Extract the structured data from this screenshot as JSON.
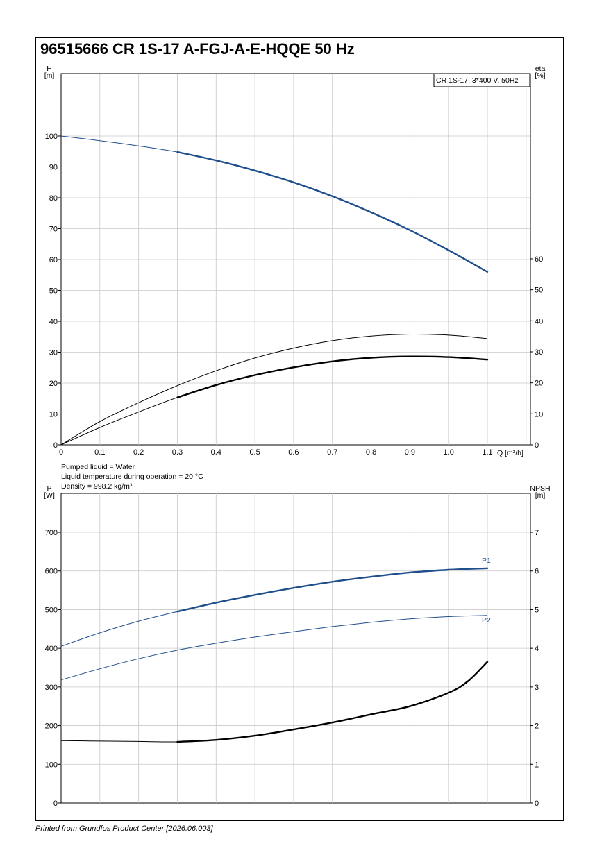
{
  "title": "96515666 CR 1S-17 A-FGJ-A-E-HQQE 50 Hz",
  "footer": "Printed from Grundfos Product Center [2026.06.003]",
  "colors": {
    "blue": "#1f4e8c",
    "black": "#000000",
    "grid": "#c8c8c8"
  },
  "liquid_info": [
    "Pumped liquid = Water",
    "Liquid temperature during operation = 20 °C",
    "Density = 998.2 kg/m³"
  ],
  "chart_data": [
    {
      "type": "line",
      "legend_box": "CR 1S-17, 3*400 V, 50Hz",
      "y_left_label": [
        "H",
        "[m]"
      ],
      "y_right_label": [
        "eta",
        "[%]"
      ],
      "x_label": "Q [m³/h]",
      "xlim": [
        0,
        1.1
      ],
      "ylim_left": [
        0,
        100
      ],
      "ylim_right": [
        0,
        100
      ],
      "x_ticks": [
        0,
        0.1,
        0.2,
        0.3,
        0.4,
        0.5,
        0.6,
        0.7,
        0.8,
        0.9,
        1.0,
        1.1
      ],
      "x_tick_labels": [
        "0",
        "0.1",
        "0.2",
        "0.3",
        "0.4",
        "0.5",
        "0.6",
        "0.7",
        "0.8",
        "0.9",
        "1.0",
        "1.1"
      ],
      "y_left_ticks": [
        0,
        10,
        20,
        30,
        40,
        50,
        60,
        70,
        80,
        90,
        100
      ],
      "y_right_ticks": [
        0,
        10,
        20,
        30,
        40,
        50,
        60
      ],
      "series": [
        {
          "color": "blue",
          "axis": "left",
          "duty_from": 0.3,
          "x": [
            0,
            0.1,
            0.2,
            0.3,
            0.4,
            0.5,
            0.6,
            0.7,
            0.8,
            0.9,
            1.0,
            1.1
          ],
          "y": [
            100,
            98.5,
            96.8,
            94.8,
            92.1,
            88.8,
            85.0,
            80.5,
            75.3,
            69.5,
            63.0,
            56.0
          ]
        },
        {
          "color": "black",
          "axis": "right",
          "duty_from": null,
          "x": [
            0,
            0.1,
            0.2,
            0.3,
            0.4,
            0.5,
            0.6,
            0.7,
            0.8,
            0.9,
            1.0,
            1.1
          ],
          "y": [
            0,
            7.5,
            13.6,
            19.1,
            23.9,
            28.0,
            31.2,
            33.6,
            35.1,
            35.7,
            35.4,
            34.3
          ]
        },
        {
          "color": "black",
          "axis": "right",
          "duty_from": 0.3,
          "x": [
            0,
            0.1,
            0.2,
            0.3,
            0.4,
            0.5,
            0.6,
            0.7,
            0.8,
            0.9,
            1.0,
            1.1
          ],
          "y": [
            0,
            5.6,
            10.6,
            15.3,
            19.3,
            22.5,
            25.0,
            26.9,
            28.1,
            28.5,
            28.3,
            27.5
          ]
        }
      ]
    },
    {
      "type": "line",
      "y_left_label": [
        "P",
        "[W]"
      ],
      "y_right_label": [
        "NPSH",
        "[m]"
      ],
      "xlim": [
        0,
        1.1
      ],
      "ylim_left": [
        0,
        750
      ],
      "ylim_right": [
        0,
        7.5
      ],
      "y_left_ticks": [
        0,
        100,
        200,
        300,
        400,
        500,
        600,
        700
      ],
      "y_right_ticks": [
        0,
        1,
        2,
        3,
        4,
        5,
        6,
        7
      ],
      "series": [
        {
          "name": "P1",
          "color": "blue",
          "axis": "left",
          "duty_from": 0.3,
          "x": [
            0,
            0.1,
            0.2,
            0.3,
            0.4,
            0.5,
            0.6,
            0.7,
            0.8,
            0.9,
            1.0,
            1.1
          ],
          "y": [
            405,
            440,
            470,
            495,
            518,
            538,
            556,
            572,
            585,
            596,
            603,
            607
          ]
        },
        {
          "name": "P2",
          "color": "blue",
          "axis": "left",
          "duty_from": null,
          "x": [
            0,
            0.1,
            0.2,
            0.3,
            0.4,
            0.5,
            0.6,
            0.7,
            0.8,
            0.9,
            1.0,
            1.1
          ],
          "y": [
            318,
            347,
            373,
            395,
            413,
            429,
            443,
            456,
            467,
            476,
            482,
            485
          ]
        },
        {
          "color": "black",
          "axis": "right",
          "duty_from": 0.3,
          "x": [
            0,
            0.1,
            0.2,
            0.3,
            0.4,
            0.5,
            0.6,
            0.7,
            0.8,
            0.9,
            1.0,
            1.05,
            1.1
          ],
          "y": [
            1.61,
            1.6,
            1.59,
            1.58,
            1.63,
            1.74,
            1.9,
            2.08,
            2.29,
            2.5,
            2.85,
            3.15,
            3.65
          ]
        }
      ]
    }
  ]
}
